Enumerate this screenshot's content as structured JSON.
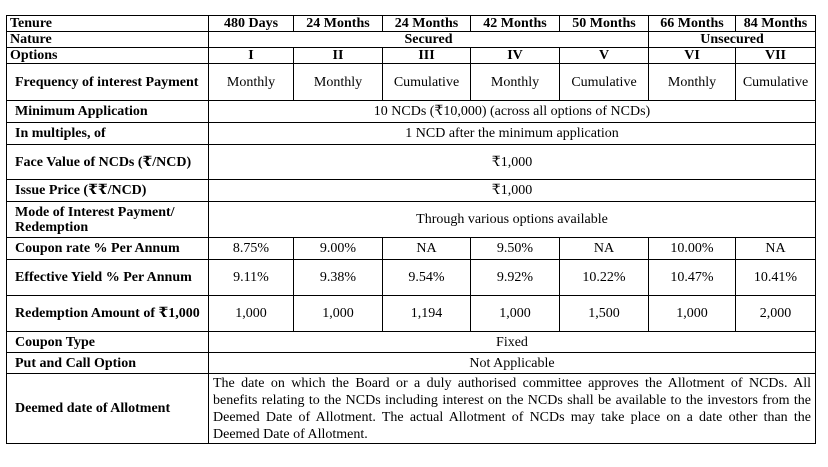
{
  "header": {
    "tenure_label": "Tenure",
    "tenures": [
      "480 Days",
      "24 Months",
      "24 Months",
      "42 Months",
      "50 Months",
      "66 Months",
      "84 Months"
    ],
    "nature_label": "Nature",
    "secured": "Secured",
    "unsecured": "Unsecured",
    "options_label": "Options",
    "options": [
      "I",
      "II",
      "III",
      "IV",
      "V",
      "VI",
      "VII"
    ]
  },
  "rows": {
    "frequency": {
      "label": "Frequency of interest Payment",
      "values": [
        "Monthly",
        "Monthly",
        "Cumulative",
        "Monthly",
        "Cumulative",
        "Monthly",
        "Cumulative"
      ]
    },
    "minimum_application": {
      "label": "Minimum Application",
      "value": "10 NCDs (₹10,000) (across all options of NCDs)"
    },
    "multiples": {
      "label": "In multiples, of",
      "value": "1 NCD after the minimum application"
    },
    "face_value": {
      "label": "Face Value of NCDs (₹/NCD)",
      "value": "₹1,000"
    },
    "issue_price": {
      "label": "Issue Price (₹₹/NCD)",
      "value": "₹1,000"
    },
    "mode": {
      "label": "Mode of Interest Payment/ Redemption",
      "value": "Through various options available"
    },
    "coupon": {
      "label": "Coupon rate % Per Annum",
      "values": [
        "8.75%",
        "9.00%",
        "NA",
        "9.50%",
        "NA",
        "10.00%",
        "NA"
      ]
    },
    "yield": {
      "label": "Effective Yield % Per Annum",
      "values": [
        "9.11%",
        "9.38%",
        "9.54%",
        "9.92%",
        "10.22%",
        "10.47%",
        "10.41%"
      ]
    },
    "redemption": {
      "label": "Redemption Amount of ₹1,000",
      "values": [
        "1,000",
        "1,000",
        "1,194",
        "1,000",
        "1,500",
        "1,000",
        "2,000"
      ]
    },
    "coupon_type": {
      "label": "Coupon Type",
      "value": "Fixed"
    },
    "put_call": {
      "label": "Put and Call Option",
      "value": "Not Applicable"
    },
    "deemed_date": {
      "label": "Deemed date of Allotment",
      "value": "The date on which the Board or a duly authorised committee approves the Allotment of NCDs. All benefits relating to the NCDs including interest on the NCDs shall be available to the investors from the Deemed Date of Allotment. The actual Allotment of NCDs may take place on a date other than the Deemed Date of Allotment."
    }
  }
}
